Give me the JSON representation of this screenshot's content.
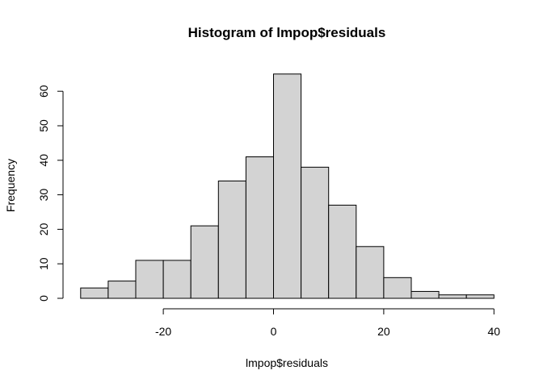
{
  "chart_data": {
    "type": "bar",
    "title": "Histogram of lmpop$residuals",
    "xlabel": "lmpop$residuals",
    "ylabel": "Frequency",
    "bin_edges": [
      -35,
      -30,
      -25,
      -20,
      -15,
      -10,
      -5,
      0,
      5,
      10,
      15,
      20,
      25,
      30,
      35,
      40
    ],
    "counts": [
      3,
      5,
      11,
      11,
      21,
      34,
      41,
      65,
      38,
      27,
      15,
      6,
      2,
      1,
      1
    ],
    "x_ticks": [
      -20,
      0,
      20,
      40
    ],
    "y_ticks": [
      0,
      10,
      20,
      30,
      40,
      50,
      60
    ],
    "bar_color": "#d3d3d3",
    "grid": false
  }
}
